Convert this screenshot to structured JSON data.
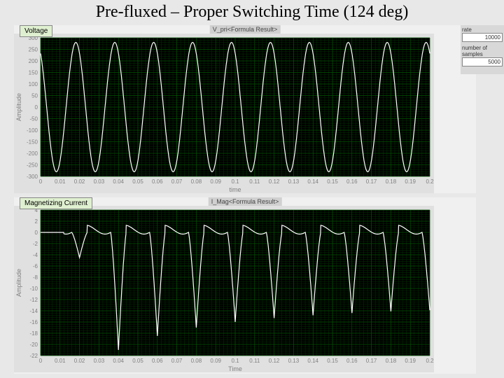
{
  "title": "Pre-fluxed – Proper Switching Time (124 deg)",
  "badges": {
    "voltage": "Voltage",
    "current": "Magnetizing Current"
  },
  "side": {
    "rate_label": "rate",
    "rate_value": "10000",
    "samples_label": "number of samples",
    "samples_value": "5000"
  },
  "scope_titles": {
    "top": "V_pri<Formula Result>",
    "bottom": "I_Mag<Formula Result>"
  },
  "voltage_chart": {
    "type": "line",
    "background_color": "#000000",
    "grid_minor_color": "#003300",
    "grid_major_color": "#006600",
    "trace_color": "#ffffff",
    "axis_text_color": "#808080",
    "xlim": [
      0,
      0.2
    ],
    "xtick_step": 0.01,
    "xlabel": "time",
    "ylim": [
      -300,
      300
    ],
    "ytick_step": 50,
    "ylabel": "Amplitude",
    "amplitude": 280,
    "frequency_hz": 50,
    "phase_deg": 124,
    "xticks": [
      "0",
      "0.01",
      "0.02",
      "0.03",
      "0.04",
      "0.05",
      "0.06",
      "0.07",
      "0.08",
      "0.09",
      "0.1",
      "0.11",
      "0.12",
      "0.13",
      "0.14",
      "0.15",
      "0.16",
      "0.17",
      "0.18",
      "0.19",
      "0.2"
    ],
    "yticks": [
      "-300",
      "-250",
      "-200",
      "-150",
      "-100",
      "-50",
      "0",
      "50",
      "100",
      "150",
      "200",
      "250",
      "300"
    ]
  },
  "current_chart": {
    "type": "line",
    "background_color": "#000000",
    "grid_minor_color": "#003300",
    "grid_major_color": "#006600",
    "trace_color": "#ffffff",
    "axis_text_color": "#808080",
    "xlim": [
      0,
      0.2
    ],
    "xtick_step": 0.01,
    "xlabel": "Time",
    "ylim": [
      -22,
      4
    ],
    "ytick_step": 2,
    "ylabel": "Amplitude",
    "xticks": [
      "0",
      "0.01",
      "0.02",
      "0.03",
      "0.04",
      "0.05",
      "0.06",
      "0.07",
      "0.08",
      "0.09",
      "0.1",
      "0.11",
      "0.12",
      "0.13",
      "0.14",
      "0.15",
      "0.16",
      "0.17",
      "0.18",
      "0.19",
      "0.2"
    ],
    "yticks": [
      "-22",
      "-20",
      "-18",
      "-16",
      "-14",
      "-12",
      "-10",
      "-8",
      "-6",
      "-4",
      "-2",
      "0",
      "2",
      "4"
    ],
    "peaks": [
      {
        "t": 0.02,
        "depth": -4.5
      },
      {
        "t": 0.04,
        "depth": -21.0
      },
      {
        "t": 0.06,
        "depth": -18.5
      },
      {
        "t": 0.08,
        "depth": -17.0
      },
      {
        "t": 0.1,
        "depth": -16.0
      },
      {
        "t": 0.12,
        "depth": -15.3
      },
      {
        "t": 0.14,
        "depth": -14.8
      },
      {
        "t": 0.16,
        "depth": -14.4
      },
      {
        "t": 0.18,
        "depth": -14.1
      },
      {
        "t": 0.2,
        "depth": -13.9
      }
    ],
    "pulse_half_width": 0.004,
    "top_ripple": 2.0,
    "baseline": 0.5
  }
}
